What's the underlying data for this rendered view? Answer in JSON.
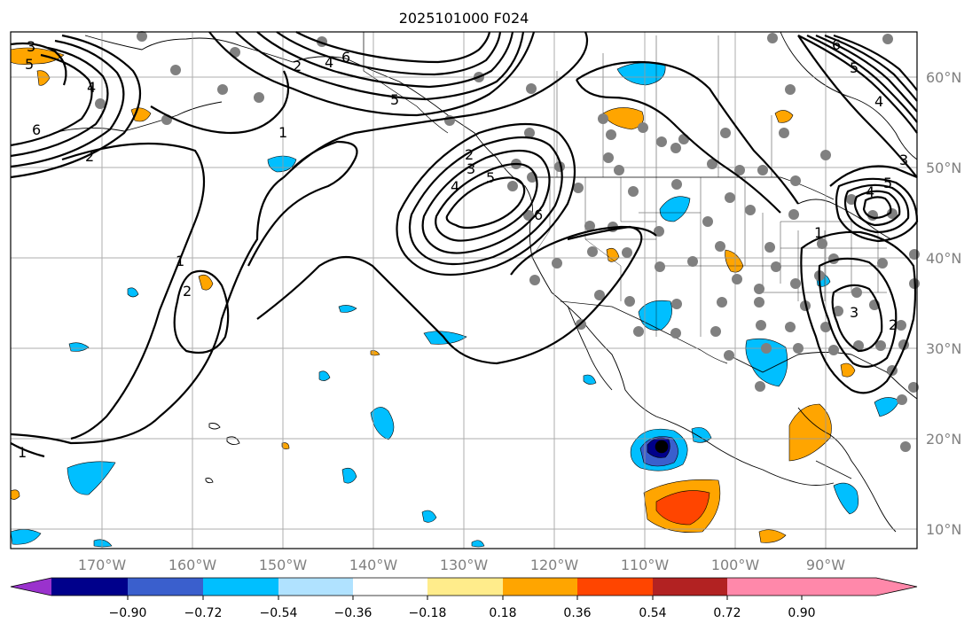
{
  "title": "2025101000 F024",
  "lon_labels": [
    "170°W",
    "160°W",
    "150°W",
    "140°W",
    "130°W",
    "120°W",
    "110°W",
    "100°W",
    "90°W"
  ],
  "lat_labels": [
    "60°N",
    "50°N",
    "40°N",
    "30°N",
    "20°N",
    "10°N"
  ],
  "colorbar": {
    "ticks": [
      "−0.90",
      "−0.72",
      "−0.54",
      "−0.36",
      "−0.18",
      "0.18",
      "0.36",
      "0.54",
      "0.72",
      "0.90"
    ],
    "colors": [
      "#9a32cd",
      "#00008b",
      "#3a5fcd",
      "#00bfff",
      "#b0e2ff",
      "#ffffff",
      "#ffec8b",
      "#ffa500",
      "#ff4500",
      "#b22222",
      "#ff88aa"
    ]
  },
  "contour_labels": {
    "c1": "3",
    "c2": "5",
    "c3": "4",
    "c4": "6",
    "c5": "2",
    "c6": "2",
    "c7": "4",
    "c8": "6",
    "c9": "5",
    "c10": "1",
    "c11": "2",
    "c12": "3",
    "c13": "4",
    "c14": "5",
    "c15": "6",
    "c16": "1",
    "c17": "2",
    "c18": "1",
    "c19": "6",
    "c20": "5",
    "c21": "4",
    "c22": "3",
    "c23": "5",
    "c24": "4",
    "c25": "3",
    "c26": "2",
    "c27": "1"
  }
}
